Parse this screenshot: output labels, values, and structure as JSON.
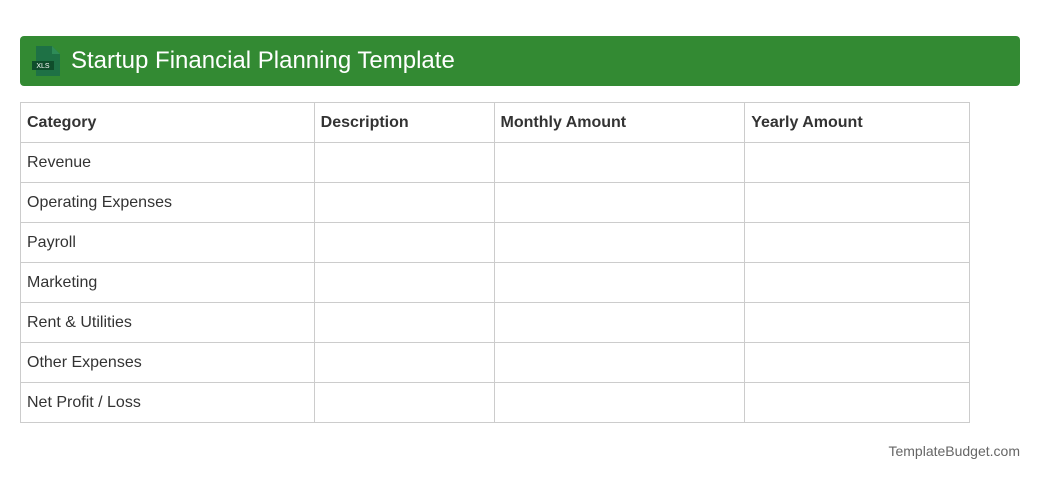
{
  "header": {
    "title": "Startup Financial Planning Template",
    "icon": "xls-file-icon",
    "icon_label": "XLS",
    "color": "#338a33"
  },
  "table": {
    "columns": [
      "Category",
      "Description",
      "Monthly Amount",
      "Yearly Amount"
    ],
    "rows": [
      [
        "Revenue",
        "",
        "",
        ""
      ],
      [
        "Operating Expenses",
        "",
        "",
        ""
      ],
      [
        "Payroll",
        "",
        "",
        ""
      ],
      [
        "Marketing",
        "",
        "",
        ""
      ],
      [
        "Rent & Utilities",
        "",
        "",
        ""
      ],
      [
        "Other Expenses",
        "",
        "",
        ""
      ],
      [
        "Net Profit / Loss",
        "",
        "",
        ""
      ]
    ]
  },
  "footer": {
    "brand": "TemplateBudget.com"
  }
}
